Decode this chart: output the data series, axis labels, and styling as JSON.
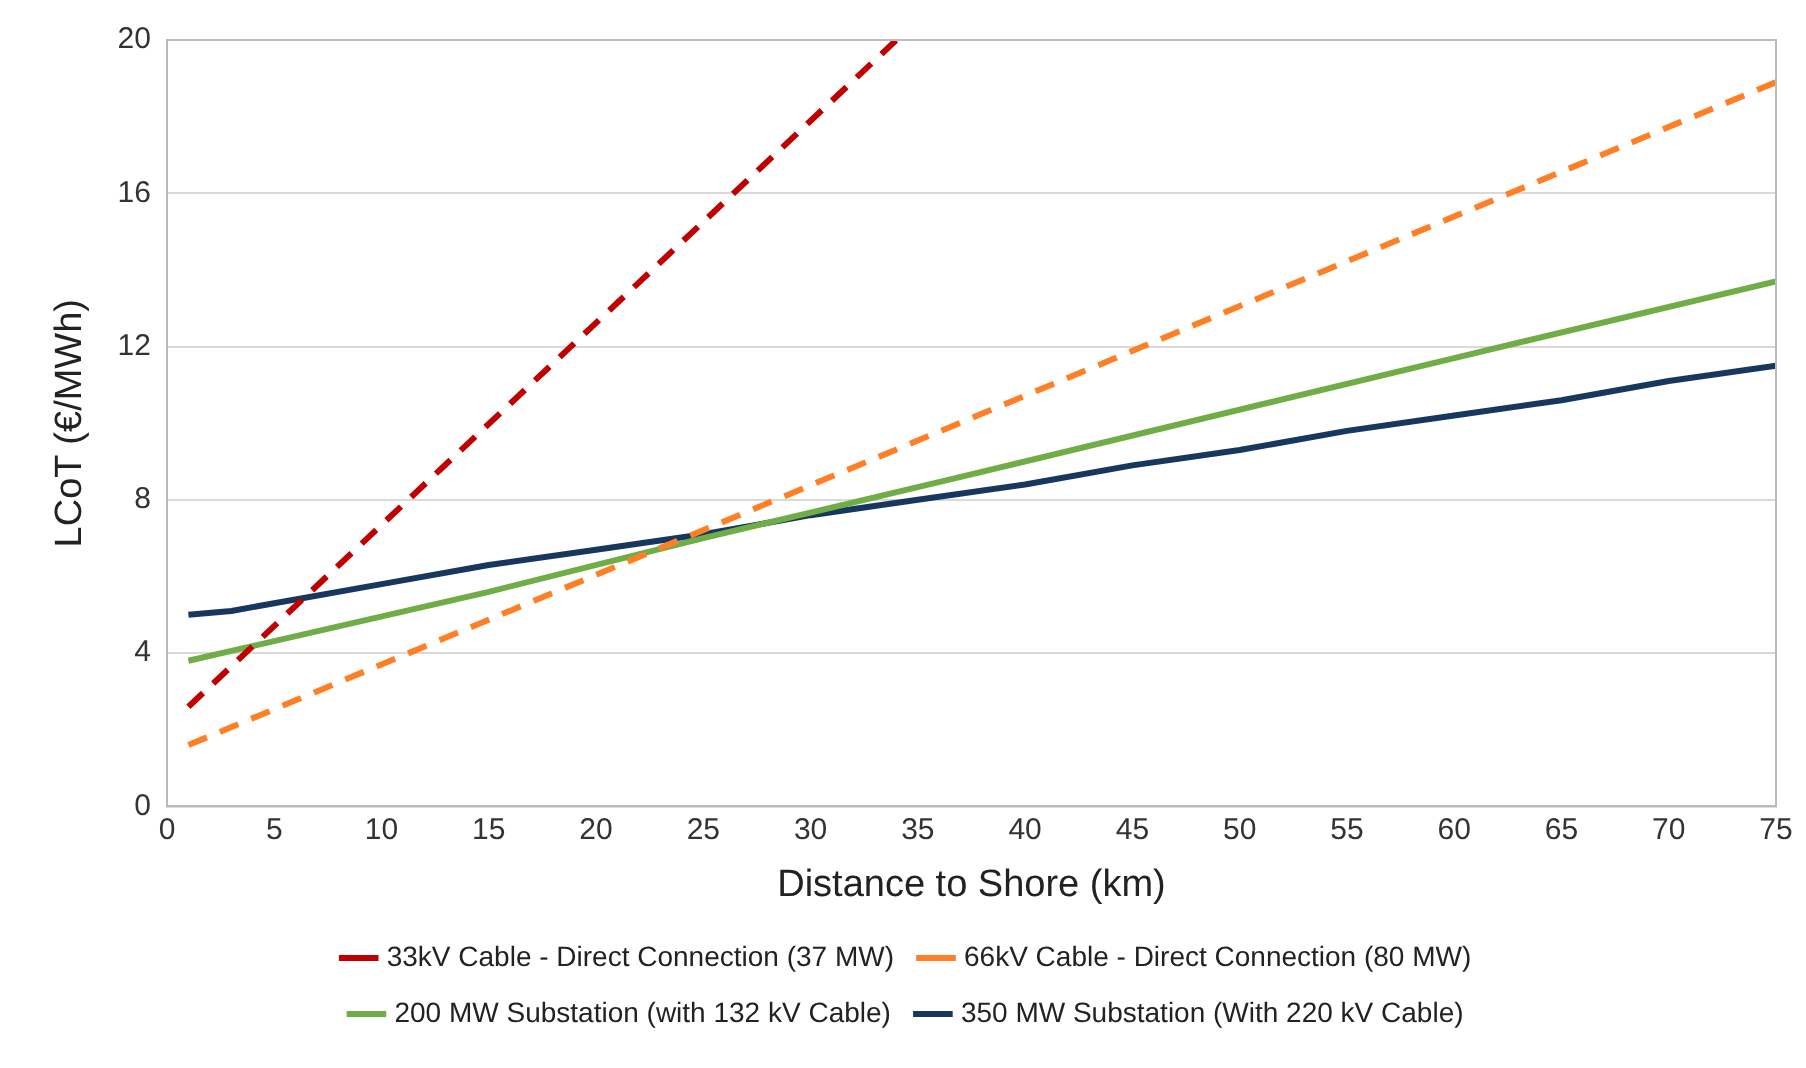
{
  "chart_data": {
    "type": "line",
    "xlabel": "Distance to Shore (km)",
    "ylabel": "LCoT (€/MWh)",
    "xlim": [
      0,
      75
    ],
    "xticks": [
      0,
      5,
      10,
      15,
      20,
      25,
      30,
      35,
      40,
      45,
      50,
      55,
      60,
      65,
      70,
      75
    ],
    "ylim": [
      0,
      20
    ],
    "yticks": [
      0,
      4,
      8,
      12,
      16,
      20
    ],
    "grid": "y",
    "legend": "bottom",
    "marker": "none",
    "series": [
      {
        "name": "33kV Cable - Direct Connection (37 MW)",
        "color": "#c00000",
        "line_style": "dashed",
        "x": [
          1,
          34
        ],
        "values": [
          2.6,
          20
        ]
      },
      {
        "name": "66kV Cable - Direct Connection (80 MW)",
        "color": "#ff7f27",
        "line_style": "dashed",
        "x": [
          1,
          75
        ],
        "values": [
          1.6,
          18.9
        ]
      },
      {
        "name": "200 MW Substation (with 132 kV Cable)",
        "color": "#70ad47",
        "line_style": "solid",
        "x": [
          1,
          15,
          25,
          37,
          60,
          75
        ],
        "values": [
          3.8,
          5.6,
          7.0,
          8.6,
          11.7,
          13.7
        ]
      },
      {
        "name": "350 MW Substation (With 220 kV Cable)",
        "color": "#17375e",
        "line_style": "solid",
        "x": [
          1,
          3,
          5,
          10,
          15,
          20,
          25,
          30,
          35,
          40,
          45,
          50,
          55,
          60,
          65,
          70,
          75
        ],
        "values": [
          5.0,
          5.1,
          5.3,
          5.8,
          6.3,
          6.7,
          7.1,
          7.6,
          8.0,
          8.4,
          8.9,
          9.3,
          9.8,
          10.2,
          10.6,
          11.1,
          11.5
        ]
      }
    ]
  }
}
